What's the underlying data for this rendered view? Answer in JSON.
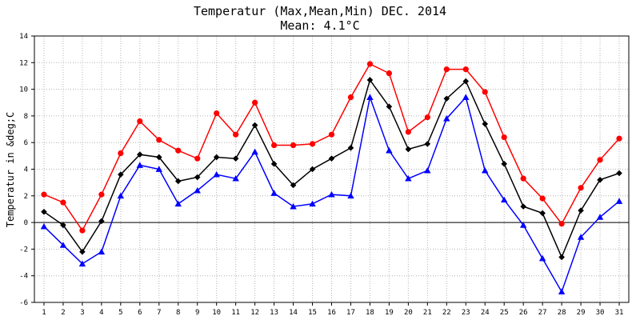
{
  "chart_data": {
    "type": "line",
    "title": "Temperatur (Max,Mean,Min) DEC. 2014",
    "subtitle": "Mean: 4.1°C",
    "ylabel": "Temperatur in &deg;C",
    "xlabel": "",
    "x": [
      1,
      2,
      3,
      4,
      5,
      6,
      7,
      8,
      9,
      10,
      11,
      12,
      13,
      14,
      15,
      16,
      17,
      18,
      19,
      20,
      21,
      22,
      23,
      24,
      25,
      26,
      27,
      28,
      29,
      30,
      31
    ],
    "ylim": [
      -6,
      14
    ],
    "yticks": [
      -6,
      -4,
      -2,
      0,
      2,
      4,
      6,
      8,
      10,
      12,
      14
    ],
    "grid": true,
    "series": [
      {
        "key": "max",
        "color": "#ff0000",
        "marker": "circle",
        "values": [
          2.1,
          1.5,
          -0.6,
          2.1,
          5.2,
          7.6,
          6.2,
          5.4,
          4.8,
          8.2,
          6.6,
          9.0,
          5.8,
          5.8,
          5.9,
          6.6,
          9.4,
          11.9,
          11.2,
          6.8,
          7.9,
          11.5,
          11.5,
          9.8,
          6.4,
          3.3,
          1.8,
          -0.1,
          2.6,
          4.7,
          6.3
        ]
      },
      {
        "key": "mean",
        "color": "#000000",
        "marker": "diamond",
        "values": [
          0.8,
          -0.2,
          -2.2,
          0.1,
          3.6,
          5.1,
          4.9,
          3.1,
          3.4,
          4.9,
          4.8,
          7.3,
          4.4,
          2.8,
          4.0,
          4.8,
          5.6,
          10.7,
          8.7,
          5.5,
          5.9,
          9.3,
          10.6,
          7.4,
          4.4,
          1.2,
          0.7,
          -2.6,
          0.9,
          3.2,
          3.7
        ]
      },
      {
        "key": "min",
        "color": "#0000ff",
        "marker": "triangle",
        "values": [
          -0.3,
          -1.7,
          -3.1,
          -2.2,
          2.0,
          4.3,
          4.0,
          1.4,
          2.4,
          3.6,
          3.3,
          5.3,
          2.2,
          1.2,
          1.4,
          2.1,
          2.0,
          9.4,
          5.4,
          3.3,
          3.9,
          7.8,
          9.4,
          3.9,
          1.7,
          -0.2,
          -2.7,
          -5.2,
          -1.1,
          0.4,
          1.6
        ]
      }
    ]
  }
}
